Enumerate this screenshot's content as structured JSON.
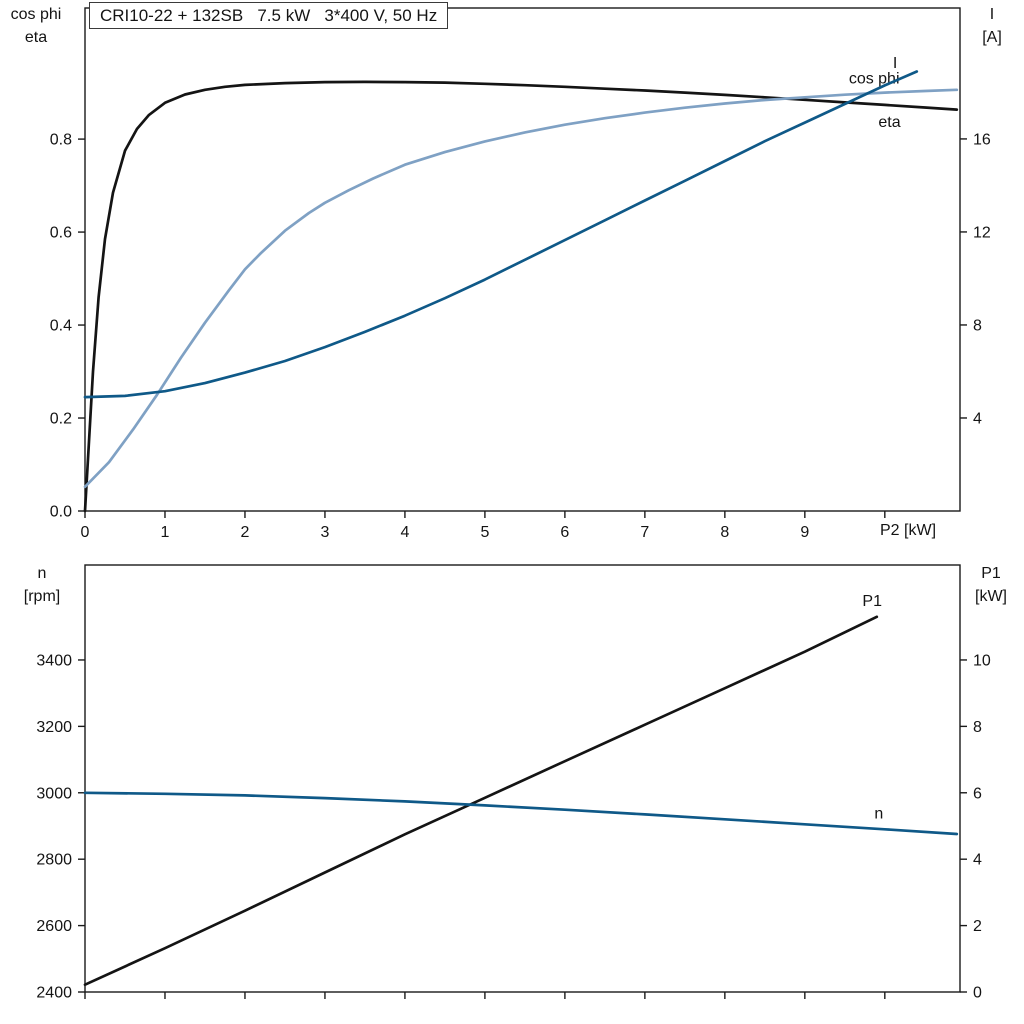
{
  "title_box": "CRI10-22 + 132SB   7.5 kW   3*400 V, 50 Hz",
  "colors": {
    "axis": "#1a1a1a",
    "black": "#141414",
    "light_blue": "#7fa1c4",
    "dark_blue": "#0f5988"
  },
  "chart_data": [
    {
      "id": "top",
      "type": "line",
      "title": "CRI10-22 + 132SB 7.5 kW 3*400 V, 50 Hz",
      "x_axis": {
        "title": "P2 [kW]",
        "lim": [
          0,
          10.94
        ],
        "ticks": [
          {
            "v": 0,
            "label": "0"
          },
          {
            "v": 1,
            "label": "1"
          },
          {
            "v": 2,
            "label": "2"
          },
          {
            "v": 3,
            "label": "3"
          },
          {
            "v": 4,
            "label": "4"
          },
          {
            "v": 5,
            "label": "5"
          },
          {
            "v": 6,
            "label": "6"
          },
          {
            "v": 7,
            "label": "7"
          },
          {
            "v": 8,
            "label": "8"
          },
          {
            "v": 9,
            "label": "9"
          },
          {
            "v": 10,
            "label": ""
          }
        ]
      },
      "left_axis": {
        "title_lines": [
          "cos phi",
          "eta"
        ],
        "lim": [
          0,
          1.082
        ],
        "ticks": [
          {
            "v": 0.0,
            "label": "0.0"
          },
          {
            "v": 0.2,
            "label": "0.2"
          },
          {
            "v": 0.4,
            "label": "0.4"
          },
          {
            "v": 0.6,
            "label": "0.6"
          },
          {
            "v": 0.8,
            "label": "0.8"
          }
        ]
      },
      "right_axis": {
        "title_lines": [
          "I",
          "[A]"
        ],
        "lim": [
          0,
          21.63
        ],
        "ticks": [
          {
            "v": 4,
            "label": "4"
          },
          {
            "v": 8,
            "label": "8"
          },
          {
            "v": 12,
            "label": "12"
          },
          {
            "v": 16,
            "label": "16"
          }
        ]
      },
      "series": [
        {
          "name": "eta",
          "axis": "left",
          "color": "#141414",
          "label": {
            "text": "eta",
            "x": 9.92,
            "y": 0.826
          },
          "points": [
            [
              0,
              0
            ],
            [
              0.05,
              0.15
            ],
            [
              0.1,
              0.3
            ],
            [
              0.17,
              0.46
            ],
            [
              0.25,
              0.585
            ],
            [
              0.35,
              0.685
            ],
            [
              0.5,
              0.775
            ],
            [
              0.65,
              0.822
            ],
            [
              0.8,
              0.852
            ],
            [
              1.0,
              0.878
            ],
            [
              1.25,
              0.896
            ],
            [
              1.5,
              0.906
            ],
            [
              1.75,
              0.9125
            ],
            [
              2.0,
              0.9165
            ],
            [
              2.5,
              0.9205
            ],
            [
              3.0,
              0.9225
            ],
            [
              3.5,
              0.923
            ],
            [
              4.0,
              0.9225
            ],
            [
              4.5,
              0.9215
            ],
            [
              5.0,
              0.919
            ],
            [
              5.5,
              0.916
            ],
            [
              6.0,
              0.9125
            ],
            [
              6.5,
              0.9085
            ],
            [
              7.0,
              0.9045
            ],
            [
              7.5,
              0.9
            ],
            [
              8.0,
              0.895
            ],
            [
              8.5,
              0.89
            ],
            [
              9.0,
              0.8845
            ],
            [
              9.5,
              0.879
            ],
            [
              10.0,
              0.8735
            ],
            [
              10.5,
              0.868
            ],
            [
              10.9,
              0.8635
            ]
          ]
        },
        {
          "name": "cos phi",
          "axis": "left",
          "color": "#7fa1c4",
          "label": {
            "text": "cos phi",
            "x": 9.55,
            "y": 0.92
          },
          "points": [
            [
              0,
              0.052
            ],
            [
              0.3,
              0.105
            ],
            [
              0.6,
              0.175
            ],
            [
              0.9,
              0.25
            ],
            [
              1.2,
              0.33
            ],
            [
              1.5,
              0.405
            ],
            [
              1.8,
              0.475
            ],
            [
              2.0,
              0.52
            ],
            [
              2.2,
              0.555
            ],
            [
              2.5,
              0.603
            ],
            [
              2.8,
              0.641
            ],
            [
              3.0,
              0.663
            ],
            [
              3.3,
              0.69
            ],
            [
              3.6,
              0.715
            ],
            [
              4.0,
              0.745
            ],
            [
              4.5,
              0.772
            ],
            [
              5.0,
              0.795
            ],
            [
              5.5,
              0.8145
            ],
            [
              6.0,
              0.831
            ],
            [
              6.5,
              0.845
            ],
            [
              7.0,
              0.857
            ],
            [
              7.5,
              0.8675
            ],
            [
              8.0,
              0.8765
            ],
            [
              8.5,
              0.884
            ],
            [
              9.0,
              0.89
            ],
            [
              9.5,
              0.8955
            ],
            [
              10.0,
              0.9
            ],
            [
              10.5,
              0.9035
            ],
            [
              10.9,
              0.906
            ]
          ]
        },
        {
          "name": "I",
          "axis": "right",
          "color": "#0f5988",
          "label": {
            "text": "I",
            "x": 10.1,
            "y": 19.05
          },
          "points": [
            [
              0,
              4.9
            ],
            [
              0.5,
              4.95
            ],
            [
              1.0,
              5.15
            ],
            [
              1.5,
              5.5
            ],
            [
              2.0,
              5.95
            ],
            [
              2.5,
              6.45
            ],
            [
              3.0,
              7.05
            ],
            [
              3.5,
              7.7
            ],
            [
              4.0,
              8.4
            ],
            [
              4.5,
              9.15
            ],
            [
              5.0,
              9.95
            ],
            [
              5.5,
              10.8
            ],
            [
              6.0,
              11.65
            ],
            [
              6.5,
              12.5
            ],
            [
              7.0,
              13.35
            ],
            [
              7.5,
              14.2
            ],
            [
              8.0,
              15.05
            ],
            [
              8.5,
              15.9
            ],
            [
              9.0,
              16.7
            ],
            [
              9.5,
              17.5
            ],
            [
              10.0,
              18.3
            ],
            [
              10.4,
              18.9
            ]
          ]
        }
      ]
    },
    {
      "id": "bottom",
      "type": "line",
      "x_axis": {
        "title": "",
        "lim": [
          0,
          10.94
        ],
        "ticks": [
          {
            "v": 0,
            "label": ""
          },
          {
            "v": 1,
            "label": ""
          },
          {
            "v": 2,
            "label": ""
          },
          {
            "v": 3,
            "label": ""
          },
          {
            "v": 4,
            "label": ""
          },
          {
            "v": 5,
            "label": ""
          },
          {
            "v": 6,
            "label": ""
          },
          {
            "v": 7,
            "label": ""
          },
          {
            "v": 8,
            "label": ""
          },
          {
            "v": 9,
            "label": ""
          },
          {
            "v": 10,
            "label": ""
          }
        ]
      },
      "left_axis": {
        "title_lines": [
          "n",
          "[rpm]"
        ],
        "lim": [
          2400,
          3686
        ],
        "ticks": [
          {
            "v": 2400,
            "label": "2400"
          },
          {
            "v": 2600,
            "label": "2600"
          },
          {
            "v": 2800,
            "label": "2800"
          },
          {
            "v": 3000,
            "label": "3000"
          },
          {
            "v": 3200,
            "label": "3200"
          },
          {
            "v": 3400,
            "label": "3400"
          }
        ]
      },
      "right_axis": {
        "title_lines": [
          "P1",
          "[kW]"
        ],
        "lim": [
          0,
          12.86
        ],
        "ticks": [
          {
            "v": 0,
            "label": "0"
          },
          {
            "v": 2,
            "label": "2"
          },
          {
            "v": 4,
            "label": "4"
          },
          {
            "v": 6,
            "label": "6"
          },
          {
            "v": 8,
            "label": "8"
          },
          {
            "v": 10,
            "label": "10"
          }
        ]
      },
      "series": [
        {
          "name": "P1",
          "axis": "right",
          "color": "#141414",
          "label": {
            "text": "P1",
            "x": 9.72,
            "y": 11.63
          },
          "points": [
            [
              0,
              0.22
            ],
            [
              1,
              1.32
            ],
            [
              2,
              2.45
            ],
            [
              3,
              3.6
            ],
            [
              4,
              4.75
            ],
            [
              5,
              5.85
            ],
            [
              6,
              6.95
            ],
            [
              7,
              8.05
            ],
            [
              8,
              9.15
            ],
            [
              9,
              10.25
            ],
            [
              9.9,
              11.3
            ]
          ]
        },
        {
          "name": "n",
          "axis": "left",
          "color": "#0f5988",
          "label": {
            "text": "n",
            "x": 9.87,
            "y": 2922
          },
          "points": [
            [
              0,
              3000
            ],
            [
              1,
              2997
            ],
            [
              2,
              2992
            ],
            [
              3,
              2984
            ],
            [
              4,
              2974
            ],
            [
              5,
              2962
            ],
            [
              6,
              2949
            ],
            [
              7,
              2935
            ],
            [
              8,
              2920
            ],
            [
              9,
              2905
            ],
            [
              10,
              2890
            ],
            [
              10.9,
              2876
            ]
          ]
        }
      ]
    }
  ]
}
